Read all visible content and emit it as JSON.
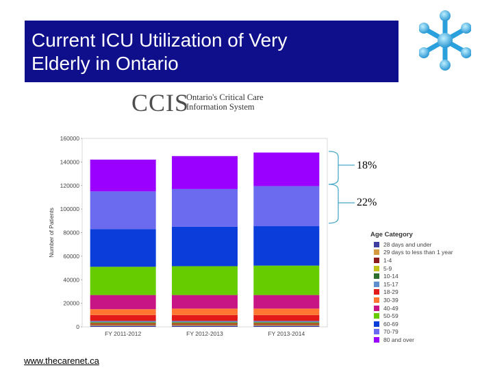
{
  "slide": {
    "title_line1": "Current ICU Utilization of Very",
    "title_line2": "Elderly in Ontario",
    "footer": "www.thecarenet.ca",
    "title_bg": "#0f0f8c"
  },
  "ccis": {
    "logo_text": "CCIS",
    "subtitle_line1": "Ontario's Critical Care",
    "subtitle_line2": "Information System"
  },
  "annotations": {
    "pct_top": "18%",
    "pct_bottom": "22%"
  },
  "chart_data": {
    "type": "bar",
    "stacked": true,
    "ylabel": "Number of Patients",
    "ylim": [
      0,
      160000
    ],
    "y_ticks": [
      0,
      20000,
      40000,
      60000,
      80000,
      100000,
      120000,
      140000,
      160000
    ],
    "categories": [
      "FY 2011-2012",
      "FY 2012-2013",
      "FY 2013-2014"
    ],
    "legend_title": "Age Category",
    "legend_position": "right",
    "grid": false,
    "series": [
      {
        "name": "28 days and under",
        "color": "#3f3f9f",
        "values": [
          1000,
          1000,
          1000
        ]
      },
      {
        "name": "29 days to less than 1 year",
        "color": "#d49a40",
        "values": [
          1000,
          1000,
          1000
        ]
      },
      {
        "name": "1-4",
        "color": "#8b1a1a",
        "values": [
          1000,
          1000,
          1000
        ]
      },
      {
        "name": "5-9",
        "color": "#c2c21a",
        "values": [
          500,
          500,
          500
        ]
      },
      {
        "name": "10-14",
        "color": "#2e6e2e",
        "values": [
          500,
          500,
          500
        ]
      },
      {
        "name": "15-17",
        "color": "#5f8fcf",
        "values": [
          1000,
          1000,
          1000
        ]
      },
      {
        "name": "18-29",
        "color": "#e31a1a",
        "values": [
          5000,
          5000,
          5000
        ]
      },
      {
        "name": "30-39",
        "color": "#ff7733",
        "values": [
          5000,
          5500,
          5500
        ]
      },
      {
        "name": "40-49",
        "color": "#c71585",
        "values": [
          12000,
          11500,
          11500
        ]
      },
      {
        "name": "50-59",
        "color": "#66cc00",
        "values": [
          24000,
          24500,
          25000
        ]
      },
      {
        "name": "60-69",
        "color": "#0b3ddb",
        "values": [
          32000,
          33500,
          33500
        ]
      },
      {
        "name": "70-79",
        "color": "#6b6bf0",
        "values": [
          32000,
          32000,
          34000
        ]
      },
      {
        "name": "80 and over",
        "color": "#9900ff",
        "values": [
          27000,
          28000,
          28500
        ]
      }
    ]
  }
}
